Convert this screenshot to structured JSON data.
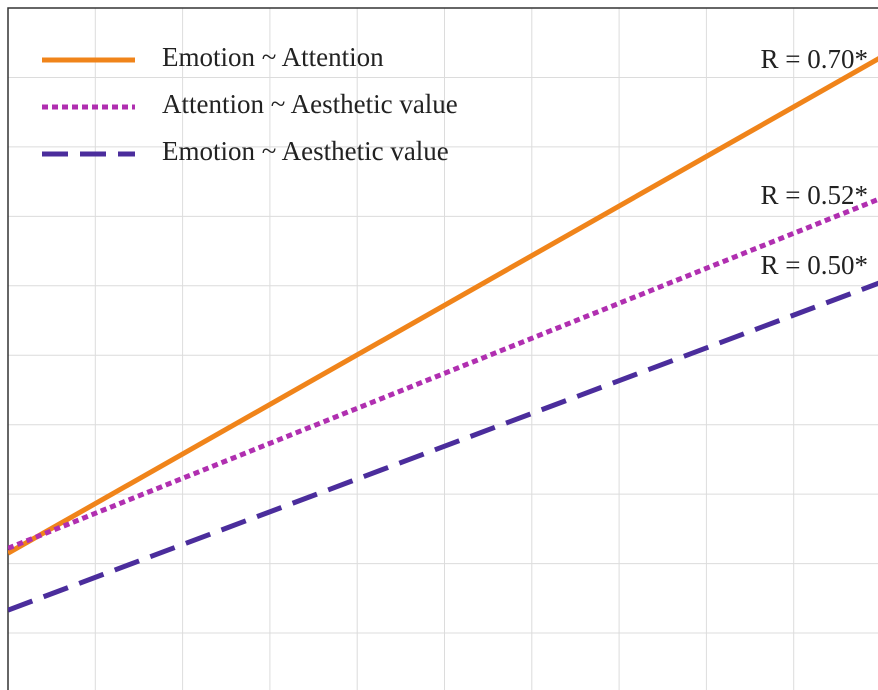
{
  "chart_data": {
    "type": "line",
    "x": [
      0,
      10
    ],
    "series": [
      {
        "name": "Emotion ~ Attention",
        "color": "#f0841a",
        "dash": "solid",
        "values": [
          2.15,
          9.29
        ]
      },
      {
        "name": "Attention ~ Aesthetic value",
        "color": "#b02fb0",
        "dash": "dotted",
        "values": [
          2.22,
          7.26
        ]
      },
      {
        "name": "Emotion ~ Aesthetic value",
        "color": "#4b2d9c",
        "dash": "dashed",
        "values": [
          1.33,
          6.05
        ]
      }
    ],
    "annotations": [
      "R = 0.70*",
      "R = 0.52*",
      "R = 0.50*"
    ],
    "xlim": [
      0,
      10
    ],
    "xticks": [
      1,
      2,
      3,
      4,
      5,
      6,
      7,
      8,
      9
    ],
    "ylim": [
      0.18,
      10
    ],
    "yticks": [
      1,
      2,
      3,
      4,
      5,
      6,
      7,
      8,
      9
    ],
    "grid": true,
    "legend": "upper left"
  }
}
